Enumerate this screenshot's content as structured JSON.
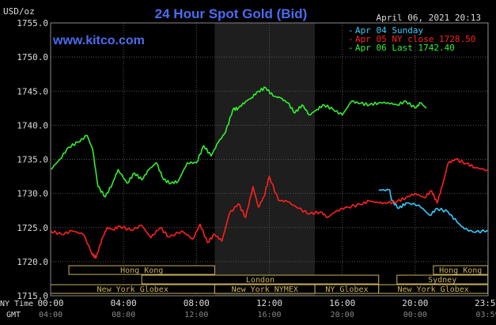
{
  "chart_data": {
    "type": "line",
    "title": "24 Hour Spot Gold (Bid)",
    "unit_label": "USD/oz",
    "watermark": "www.kitco.com",
    "timestamp": "April 06, 2021 20:13",
    "ylim": [
      1715.0,
      1755.0
    ],
    "y_ticks": [
      "1755.0",
      "1750.0",
      "1745.0",
      "1740.0",
      "1735.0",
      "1730.0",
      "1725.0",
      "1720.0",
      "1715.0"
    ],
    "y_tick_values": [
      1755,
      1750,
      1745,
      1740,
      1735,
      1730,
      1725,
      1720,
      1715
    ],
    "x_range_hours": [
      0,
      24
    ],
    "x_ticks_ny": [
      "00:00",
      "04:00",
      "08:00",
      "12:00",
      "16:00",
      "20:00",
      "23:59"
    ],
    "x_ticks_gmt": [
      "04:00",
      "08:00",
      "12:00",
      "16:00",
      "20:00",
      "00:00",
      "03:59"
    ],
    "x_tick_hours": [
      0,
      4,
      8,
      12,
      16,
      20,
      23.98
    ],
    "x_row_labels": [
      "NY Time",
      "GMT"
    ],
    "shaded_hours": [
      9.0,
      14.5
    ],
    "legend": [
      {
        "label": "Apr 04 Sunday",
        "color": "#33ccff"
      },
      {
        "label": "Apr 05 NY close 1728.50",
        "color": "#ff2020"
      },
      {
        "label": "Apr 06 Last 1742.40",
        "color": "#33ee33"
      }
    ],
    "series": [
      {
        "name": "Apr 04 Sunday",
        "color": "#33ccff",
        "x": [
          18,
          18.6,
          18.7,
          19.1,
          19.5,
          20.2,
          20.8,
          21.2,
          21.8,
          22.3,
          22.7,
          23.3,
          23.98
        ],
        "y": [
          1730.5,
          1730.5,
          1729.0,
          1727.8,
          1728.6,
          1728.3,
          1726.8,
          1727.8,
          1727.3,
          1725.8,
          1724.8,
          1724.3,
          1724.6
        ]
      },
      {
        "name": "Apr 05 NY close 1728.50",
        "color": "#ff2020",
        "x": [
          0,
          0.6,
          1.2,
          1.8,
          2.3,
          2.5,
          2.8,
          3.1,
          3.4,
          3.8,
          4.4,
          5,
          5.5,
          6,
          6.5,
          7.2,
          7.8,
          8.2,
          8.6,
          9,
          9.4,
          9.8,
          10.3,
          10.7,
          11.1,
          11.4,
          11.7,
          12,
          12.5,
          13,
          13.6,
          14.2,
          14.8,
          15.2,
          15.7,
          16.3,
          17,
          17.5,
          18,
          18.5,
          19,
          19.5,
          20,
          20.5,
          20.9,
          21.2,
          21.5,
          21.8,
          22.2,
          22.8,
          23.3,
          23.98
        ],
        "y": [
          1724.5,
          1724.0,
          1724.5,
          1724.0,
          1721.0,
          1720.6,
          1723.2,
          1725.0,
          1724.7,
          1725.2,
          1724.6,
          1725.3,
          1723.5,
          1725.0,
          1723.6,
          1724.5,
          1723.3,
          1725.5,
          1722.8,
          1724.0,
          1723.0,
          1727.0,
          1728.5,
          1726.5,
          1731.0,
          1728.0,
          1729.5,
          1732.5,
          1729.0,
          1728.8,
          1727.8,
          1727.0,
          1727.3,
          1726.5,
          1727.5,
          1728.0,
          1728.4,
          1728.9,
          1728.6,
          1728.6,
          1728.8,
          1729.4,
          1730.0,
          1729.4,
          1730.4,
          1728.6,
          1731.2,
          1734.4,
          1735.0,
          1734.4,
          1733.8,
          1733.4
        ]
      },
      {
        "name": "Apr 06 Last 1742.40",
        "color": "#33ee33",
        "x": [
          0,
          0.5,
          1,
          1.5,
          2,
          2.3,
          2.6,
          3,
          3.4,
          3.7,
          4.2,
          4.6,
          5,
          5.4,
          5.8,
          6.2,
          6.6,
          7,
          7.5,
          8,
          8.4,
          8.8,
          9.2,
          9.6,
          10,
          10.3,
          10.7,
          11,
          11.4,
          11.8,
          12.2,
          12.6,
          13,
          13.4,
          13.8,
          14.2,
          14.6,
          15,
          15.5,
          16,
          16.5,
          17,
          17.5,
          18,
          18.5,
          19,
          19.5,
          20,
          20.3,
          20.6
        ],
        "y": [
          1733.5,
          1735.0,
          1736.8,
          1737.5,
          1738.5,
          1736.5,
          1731.0,
          1729.5,
          1731.5,
          1733.5,
          1731.5,
          1733.0,
          1732.0,
          1733.5,
          1734.5,
          1732.0,
          1731.5,
          1731.8,
          1734.5,
          1734.5,
          1737.0,
          1735.5,
          1737.5,
          1739.0,
          1742.3,
          1742.5,
          1743.5,
          1744.0,
          1745.0,
          1745.5,
          1744.3,
          1744.0,
          1743.3,
          1741.8,
          1743.0,
          1741.5,
          1742.3,
          1743.0,
          1742.3,
          1741.5,
          1743.5,
          1743.2,
          1743.0,
          1743.3,
          1743.3,
          1743.0,
          1743.5,
          1742.5,
          1743.3,
          1742.5
        ]
      }
    ],
    "grid": true,
    "legend_position": "top-right",
    "sessions": [
      {
        "label": "Hong Kong",
        "start": 1.0,
        "end": 9.0,
        "row": 0
      },
      {
        "label": "London",
        "start": 5.0,
        "end": 18.0,
        "row": 1
      },
      {
        "label": "New York Globex",
        "start": 0.0,
        "end": 9.0,
        "row": 2
      },
      {
        "label": "New York NYMEX",
        "start": 9.0,
        "end": 14.5,
        "row": 2
      },
      {
        "label": "NY Globex",
        "start": 14.5,
        "end": 18.0,
        "row": 2
      },
      {
        "label": "Hong Kong",
        "start": 21.0,
        "end": 23.98,
        "row": 0
      },
      {
        "label": "Sydney",
        "start": 19.0,
        "end": 23.98,
        "row": 1
      },
      {
        "label": "New York Globex",
        "start": 18.0,
        "end": 23.98,
        "row": 2
      }
    ]
  }
}
